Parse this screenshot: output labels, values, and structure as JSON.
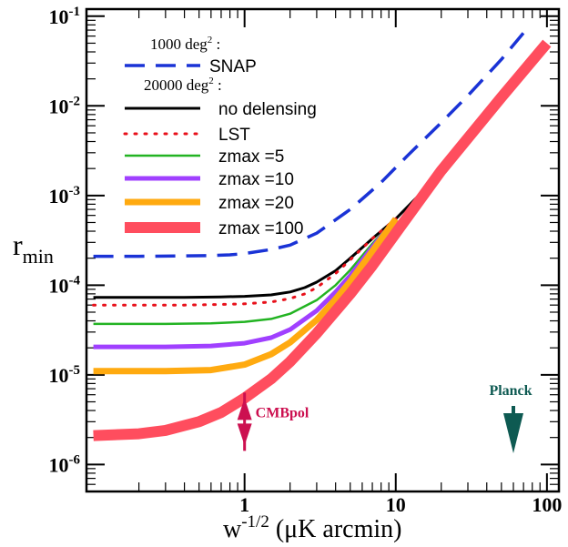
{
  "chart_data": {
    "type": "line",
    "x_scale": "log",
    "y_scale": "log",
    "xlim": [
      0.09,
      120
    ],
    "ylim": [
      5e-07,
      0.12
    ],
    "xlabel": {
      "main": "w",
      "sup": "-1/2",
      "rest": " (μK arcmin)"
    },
    "ylabel": {
      "main": "r",
      "sub": "min"
    },
    "x_ticks": [
      {
        "value": 1,
        "label": "1"
      },
      {
        "value": 10,
        "label": "10"
      },
      {
        "value": 100,
        "label": "100"
      }
    ],
    "y_ticks": [
      {
        "value": 1e-06,
        "base": "10",
        "exp": "-6"
      },
      {
        "value": 1e-05,
        "base": "10",
        "exp": "-5"
      },
      {
        "value": 0.0001,
        "base": "10",
        "exp": "-4"
      },
      {
        "value": 0.001,
        "base": "10",
        "exp": "-3"
      },
      {
        "value": 0.01,
        "base": "10",
        "exp": "-2"
      },
      {
        "value": 0.1,
        "base": "10",
        "exp": "-1"
      }
    ],
    "legend_headers": [
      {
        "main": "1000 deg",
        "sup": "2",
        "rest": " :"
      },
      {
        "main": "20000 deg",
        "sup": "2",
        "rest": " :"
      }
    ],
    "series": [
      {
        "name": "SNAP",
        "color": "#1a33d6",
        "style": "dashed",
        "width": 3.5,
        "x": [
          0.1,
          0.2,
          0.4,
          0.6,
          0.8,
          1.0,
          1.5,
          2.0,
          3.0,
          5.0,
          8.0,
          12.0,
          20.0,
          30.0,
          50.0,
          70.0
        ],
        "y": [
          0.00021,
          0.00021,
          0.000212,
          0.000214,
          0.000218,
          0.000225,
          0.00025,
          0.00028,
          0.00038,
          0.0007,
          0.0014,
          0.0028,
          0.0065,
          0.013,
          0.033,
          0.065
        ]
      },
      {
        "name": "no delensing",
        "color": "#000000",
        "style": "solid",
        "width": 3,
        "x": [
          0.1,
          0.2,
          0.4,
          0.7,
          1.0,
          1.5,
          2.0,
          2.5,
          3.0,
          4.0,
          5.0,
          7.0,
          10.0,
          15.0,
          20.0,
          30.0,
          50.0,
          70.0,
          100.0
        ],
        "y": [
          7.3e-05,
          7.3e-05,
          7.3e-05,
          7.4e-05,
          7.5e-05,
          7.8e-05,
          8.4e-05,
          9.4e-05,
          0.000108,
          0.000145,
          0.0002,
          0.00033,
          0.00055,
          0.0011,
          0.0019,
          0.0041,
          0.011,
          0.021,
          0.045
        ]
      },
      {
        "name": "LST",
        "color": "#e8101a",
        "style": "dotted",
        "width": 3,
        "x": [
          0.1,
          0.2,
          0.4,
          0.7,
          1.0,
          1.5,
          2.0,
          2.5,
          3.0,
          4.0,
          5.0,
          7.0,
          10.0
        ],
        "y": [
          6e-05,
          6e-05,
          6e-05,
          6.1e-05,
          6.2e-05,
          6.5e-05,
          7.1e-05,
          8e-05,
          9.4e-05,
          0.000135,
          0.000192,
          0.00033,
          0.00055
        ]
      },
      {
        "name": "zmax =5",
        "color": "#22b322",
        "style": "solid",
        "width": 2.5,
        "x": [
          0.1,
          0.3,
          0.6,
          1.0,
          1.5,
          2.0,
          3.0,
          4.0,
          5.0,
          7.0,
          10.0
        ],
        "y": [
          3.7e-05,
          3.7e-05,
          3.75e-05,
          3.9e-05,
          4.2e-05,
          4.8e-05,
          6.8e-05,
          0.0001,
          0.000148,
          0.00029,
          0.00055
        ]
      },
      {
        "name": "zmax =10",
        "color": "#a040ff",
        "style": "solid",
        "width": 5,
        "x": [
          0.1,
          0.3,
          0.6,
          1.0,
          1.5,
          2.0,
          3.0,
          4.0,
          5.0,
          7.0,
          10.0
        ],
        "y": [
          2.05e-05,
          2.05e-05,
          2.1e-05,
          2.25e-05,
          2.6e-05,
          3.2e-05,
          5.2e-05,
          8.4e-05,
          0.000128,
          0.000265,
          0.00055
        ]
      },
      {
        "name": "zmax =20",
        "color": "#ffaa10",
        "style": "solid",
        "width": 7,
        "x": [
          0.1,
          0.3,
          0.6,
          1.0,
          1.5,
          2.0,
          3.0,
          4.0,
          5.0,
          7.0,
          10.0
        ],
        "y": [
          1.1e-05,
          1.1e-05,
          1.13e-05,
          1.3e-05,
          1.7e-05,
          2.3e-05,
          4.1e-05,
          7e-05,
          0.00011,
          0.00024,
          0.00055
        ]
      },
      {
        "name": "zmax =100",
        "color": "#ff4d5e",
        "style": "solid",
        "width": 12,
        "x": [
          0.1,
          0.2,
          0.3,
          0.5,
          0.7,
          1.0,
          1.5,
          2.0,
          3.0,
          5.0,
          7.0,
          10.0,
          20.0,
          50.0,
          100.0
        ],
        "y": [
          2.1e-06,
          2.2e-06,
          2.4e-06,
          3e-06,
          3.8e-06,
          5.5e-06,
          9e-06,
          1.4e-05,
          2.9e-05,
          8e-05,
          0.000165,
          0.00038,
          0.0019,
          0.0125,
          0.05
        ]
      }
    ],
    "annotations": [
      {
        "label": "CMBpol",
        "color": "#cc1050",
        "x": 1.0,
        "y": 3e-06,
        "kind": "double-arrow"
      },
      {
        "label": "Planck",
        "color": "#0e5a52",
        "x": 60.0,
        "y": 6e-06,
        "kind": "down-arrow"
      }
    ]
  }
}
